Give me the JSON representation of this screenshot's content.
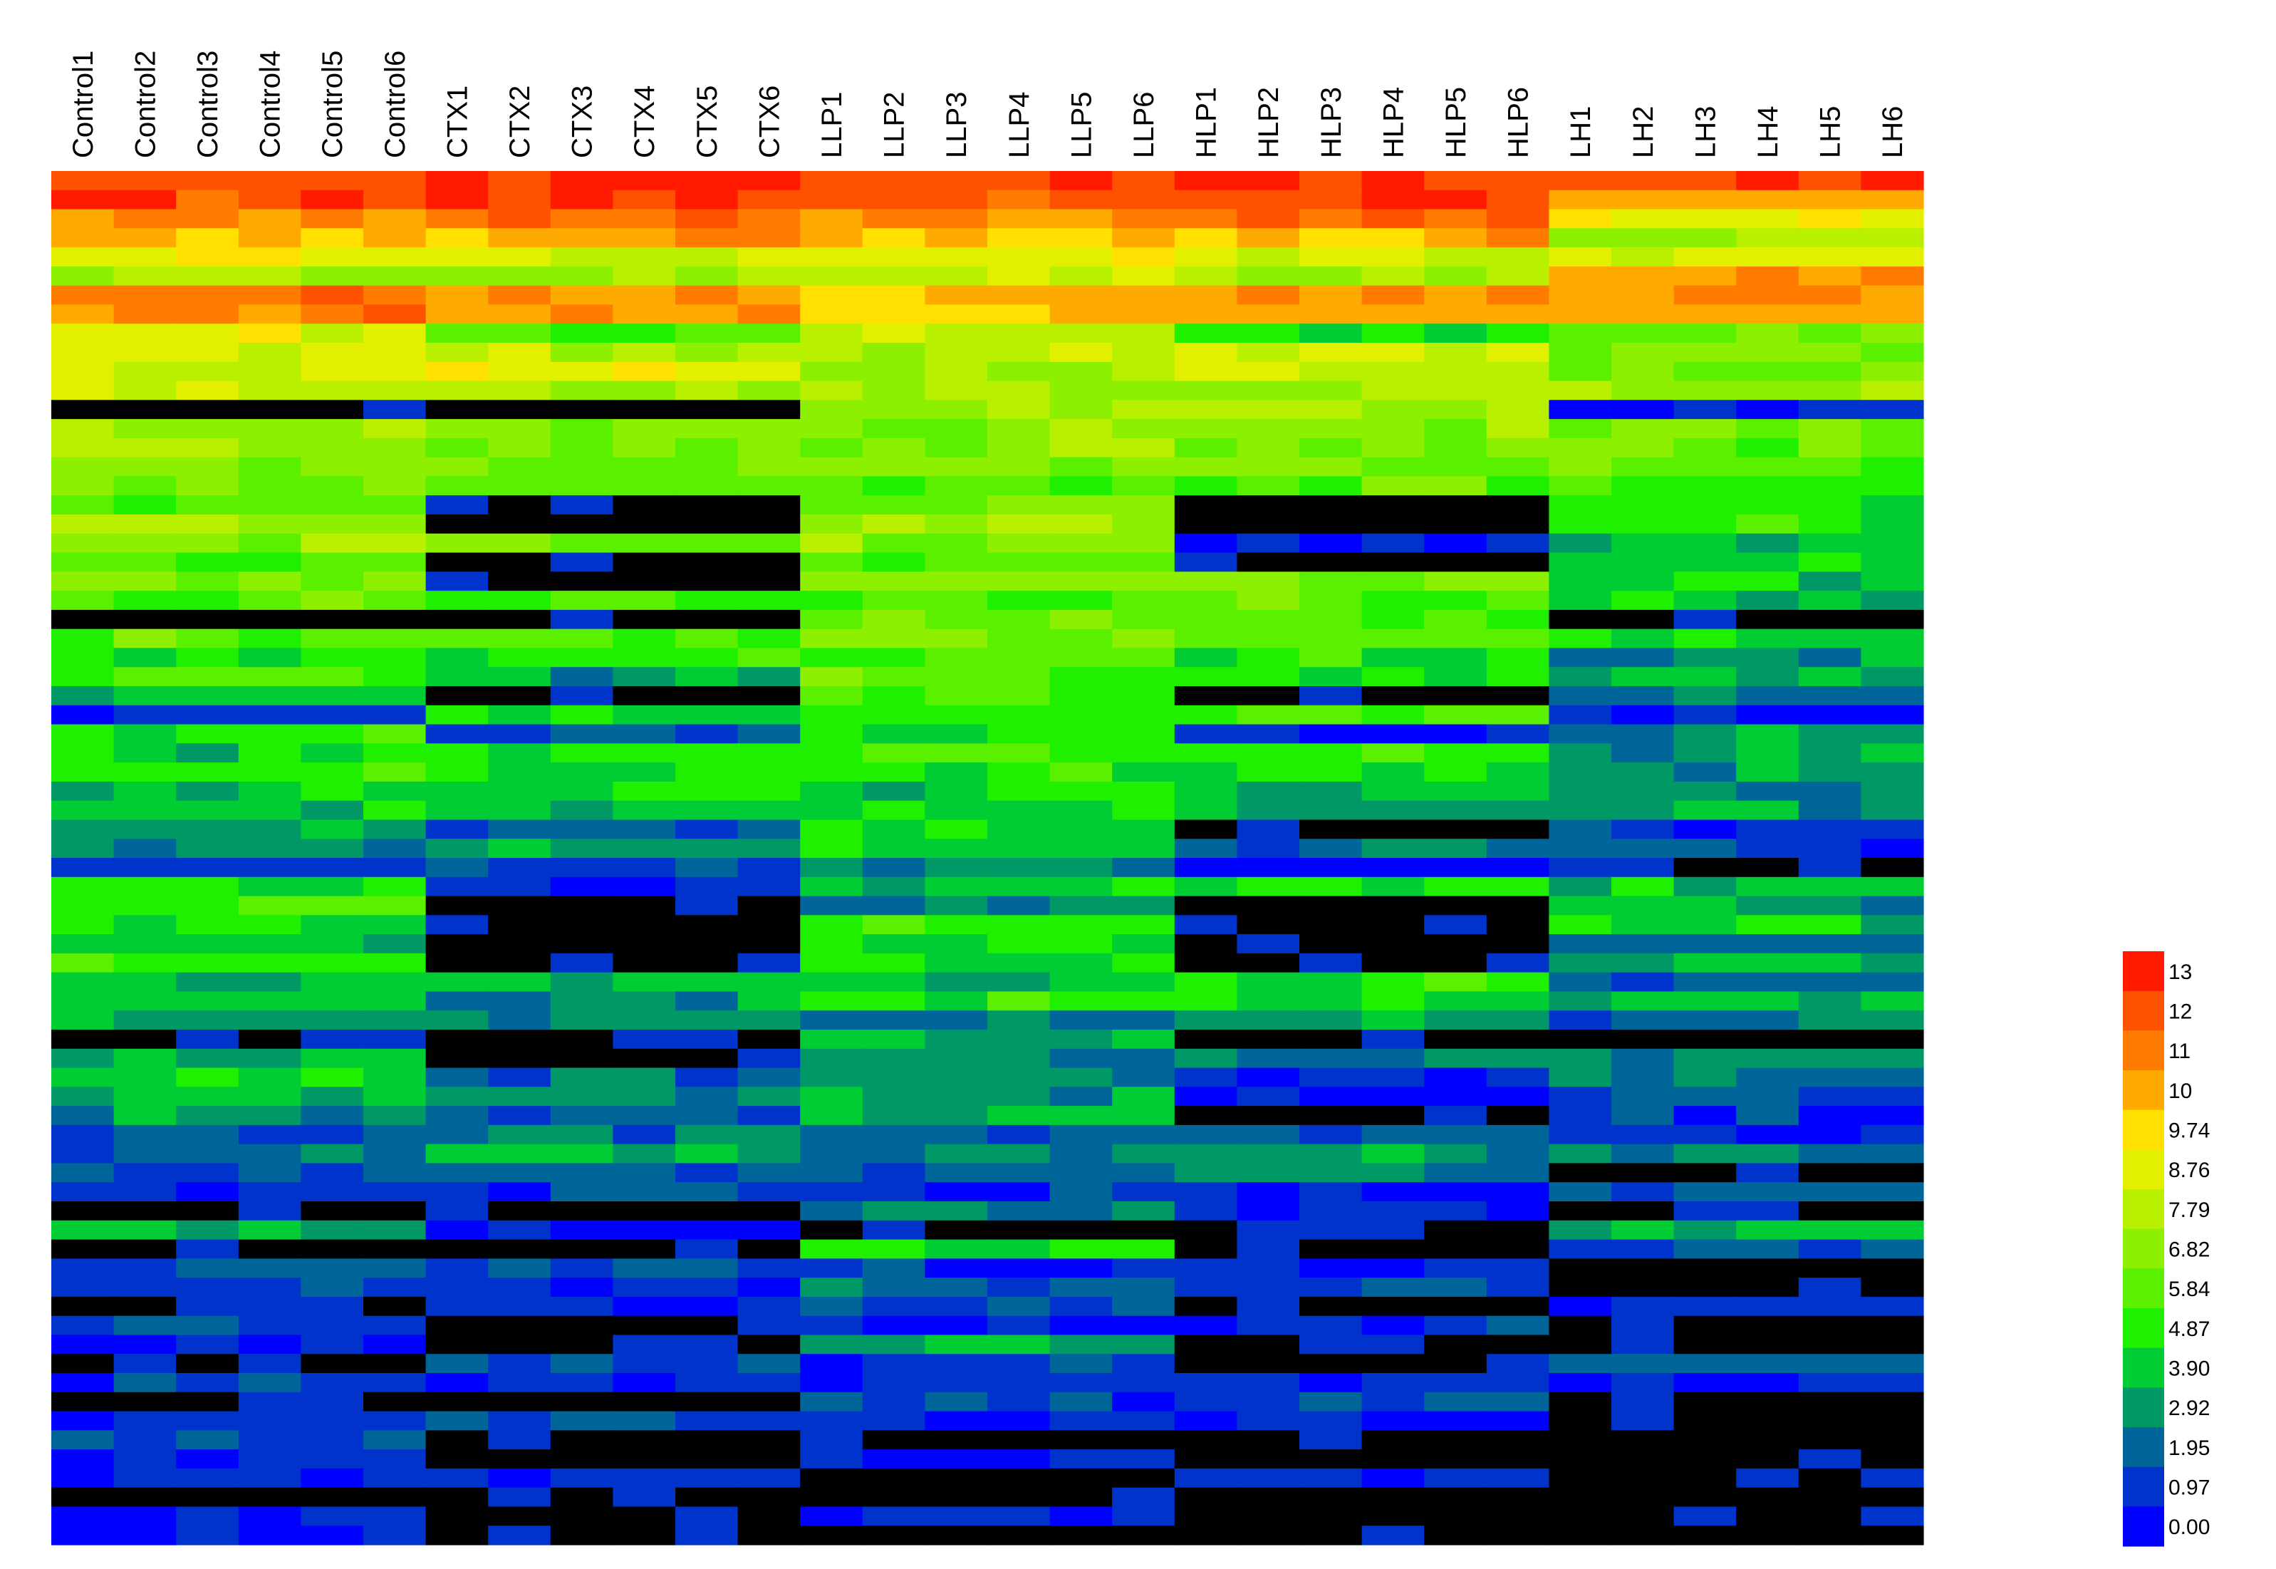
{
  "chart_data": {
    "type": "heatmap",
    "title": "",
    "xlabel": "",
    "ylabel": "",
    "columns": [
      "Control1",
      "Control2",
      "Control3",
      "Control4",
      "Control5",
      "Control6",
      "CTX1",
      "CTX2",
      "CTX3",
      "CTX4",
      "CTX5",
      "CTX6",
      "LLP1",
      "LLP2",
      "LLP3",
      "LLP4",
      "LLP5",
      "LLP6",
      "HLP1",
      "HLP2",
      "HLP3",
      "HLP4",
      "HLP5",
      "HLP6",
      "LH1",
      "LH2",
      "LH3",
      "LH4",
      "LH5",
      "LH6"
    ],
    "n_rows": 72,
    "value_range": [
      0,
      13
    ],
    "missing_color": "#000000",
    "legend": {
      "placement": "right",
      "labels": [
        "13",
        "12",
        "11",
        "10",
        "9.74",
        "8.76",
        "7.79",
        "6.82",
        "5.84",
        "4.87",
        "3.90",
        "2.92",
        "1.95",
        "0.97",
        "0.00"
      ],
      "colors": [
        "#ff1a00",
        "#ff5200",
        "#ff7c00",
        "#ffaa00",
        "#ffe000",
        "#e2f000",
        "#b8f000",
        "#8cf000",
        "#5af000",
        "#1ef000",
        "#00cc33",
        "#009966",
        "#006699",
        "#0033cc",
        "#0000ff"
      ]
    },
    "row_profiles": {
      "control": [
        12.5,
        12.2,
        11,
        10,
        9,
        7,
        11,
        11,
        8.5,
        8,
        7.8,
        7.5,
        0,
        7,
        6.8,
        6.5,
        6,
        5.5,
        7,
        6.5,
        5,
        6,
        5.5,
        0,
        5.5,
        4.5,
        5,
        4,
        0.5,
        4.5,
        4,
        4.5,
        3.5,
        4,
        3,
        2.5,
        0.3,
        4,
        5,
        4.5,
        3.5,
        4.5,
        3.5,
        4,
        3,
        0,
        3,
        4,
        3.5,
        2.5,
        1.5,
        2,
        1.5,
        1,
        0,
        3,
        0,
        1.5,
        1,
        0,
        1.5,
        0.5,
        0,
        1,
        0,
        0.5,
        1.5,
        0.3,
        0.5,
        0,
        0.3,
        0.3
      ],
      "ctx": [
        13,
        12.5,
        11.5,
        10.5,
        8,
        7,
        10.5,
        10.5,
        5,
        7.5,
        8.5,
        7,
        0,
        6,
        6,
        5.5,
        5.5,
        0,
        0,
        5.5,
        0,
        0,
        5,
        0,
        5,
        4.5,
        3,
        0,
        4,
        1.5,
        4.5,
        4,
        4,
        3.5,
        1.5,
        3,
        1,
        0.5,
        0,
        0,
        0,
        0,
        3.5,
        2.5,
        2,
        0,
        0,
        2,
        2.5,
        1.5,
        2,
        3,
        1.5,
        1,
        0,
        0.5,
        0,
        1,
        1,
        0.5,
        0,
        0,
        1,
        0.5,
        0,
        1.5,
        0,
        0,
        0.5,
        0,
        0,
        0
      ],
      "llp": [
        12,
        12,
        10.5,
        9.5,
        8.5,
        7.5,
        10,
        10,
        8,
        7.5,
        7,
        7,
        7,
        6.5,
        6.5,
        6,
        5.5,
        6,
        7,
        6.5,
        5.5,
        6,
        5,
        6,
        6,
        5.5,
        5.5,
        5,
        4.5,
        4.5,
        5,
        4.5,
        4,
        4,
        4,
        4,
        2.5,
        4,
        2.5,
        5,
        4.5,
        4,
        3,
        4.5,
        2.5,
        3.5,
        2.5,
        2.5,
        3,
        3.5,
        2,
        2,
        1.5,
        1,
        2.5,
        0,
        4,
        1,
        2,
        1.5,
        0.5,
        3,
        1,
        0.5,
        1,
        0.5,
        0,
        0.5,
        0,
        0,
        0.5,
        0
      ],
      "hlp": [
        12.5,
        12.5,
        11.5,
        10,
        8,
        7.5,
        10.5,
        10.5,
        4.5,
        8,
        8,
        7,
        7,
        6.5,
        6,
        6,
        5.5,
        0,
        0,
        0.5,
        0,
        6,
        5.5,
        5,
        5.5,
        4.5,
        4,
        0,
        5,
        0.5,
        4.5,
        4,
        3.5,
        3,
        0,
        2,
        0.5,
        4,
        0,
        0,
        0,
        0,
        4.5,
        4,
        3,
        0,
        2,
        0.5,
        0.5,
        0,
        2,
        3,
        2,
        0.5,
        1,
        0,
        0,
        0.5,
        1,
        0,
        1,
        0,
        0,
        0.5,
        1,
        0.5,
        0,
        0,
        0.5,
        0,
        0,
        0
      ],
      "lh": [
        12,
        10.5,
        8.5,
        7,
        8,
        11,
        10.5,
        10.5,
        6,
        6.5,
        6,
        7,
        0.5,
        6,
        5.5,
        5.5,
        5,
        4,
        4.5,
        3.5,
        4,
        4,
        3.5,
        0,
        4,
        2.5,
        3,
        2,
        0.5,
        2.5,
        3,
        2.5,
        2.5,
        3,
        1,
        1,
        0,
        3.5,
        3,
        4,
        2,
        3,
        2,
        3.5,
        2,
        0,
        2.5,
        2,
        1.5,
        1,
        0.5,
        2.5,
        0,
        1.5,
        0,
        3,
        1,
        0,
        0,
        1,
        0,
        0,
        1.5,
        0.5,
        0,
        0,
        0,
        0,
        0,
        0,
        0,
        0
      ]
    }
  }
}
